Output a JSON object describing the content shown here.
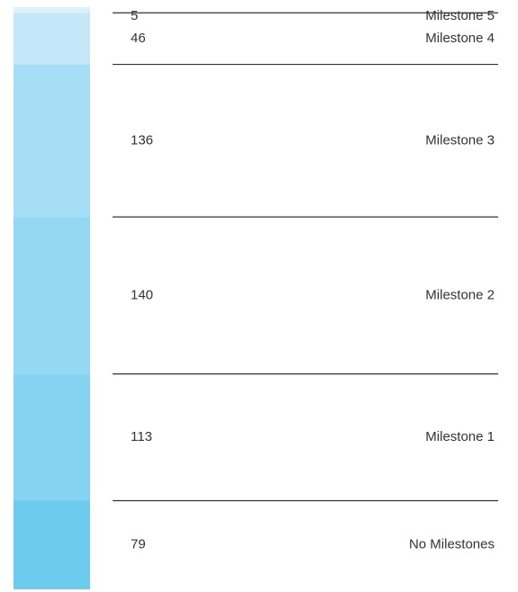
{
  "chart_data": {
    "type": "bar",
    "stacked": true,
    "series": [
      {
        "name": "No Milestones",
        "color": "#6dcbee",
        "values": [
          79
        ]
      },
      {
        "name": "Milestone 1",
        "color": "#86d3f1",
        "values": [
          113
        ]
      },
      {
        "name": "Milestone 2",
        "color": "#95d8f3",
        "values": [
          140
        ]
      },
      {
        "name": "Milestone 3",
        "color": "#a6def5",
        "values": [
          136
        ]
      },
      {
        "name": "Milestone 4",
        "color": "#c4e8f8",
        "values": [
          46
        ]
      },
      {
        "name": "Milestone 5",
        "color": "#ddf1fb",
        "values": [
          5
        ]
      }
    ]
  }
}
